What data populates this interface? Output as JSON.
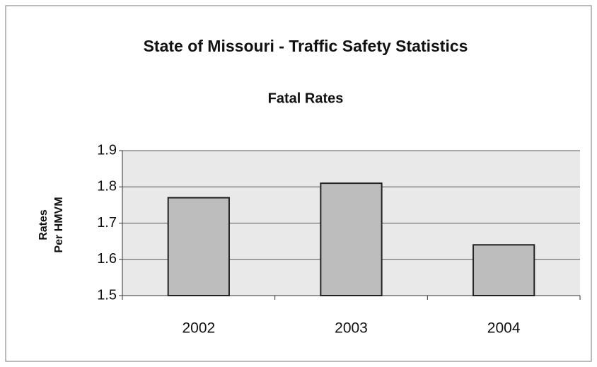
{
  "chart_data": {
    "type": "bar",
    "title": "State of Missouri - Traffic Safety Statistics",
    "subtitle": "Fatal Rates",
    "y_label_lines": [
      "Rates",
      "Per HMVM"
    ],
    "categories": [
      "2002",
      "2003",
      "2004"
    ],
    "values": [
      1.77,
      1.81,
      1.64
    ],
    "color": "#bdbdbd",
    "ylim": [
      1.5,
      1.9
    ],
    "yticks": [
      1.5,
      1.6,
      1.7,
      1.8,
      1.9
    ],
    "grid": true
  }
}
